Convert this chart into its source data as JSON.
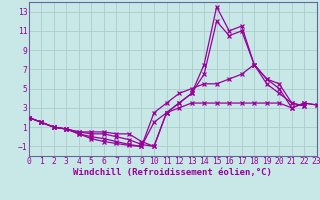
{
  "xlabel": "Windchill (Refroidissement éolien,°C)",
  "background_color": "#c8e8e8",
  "line_color": "#990099",
  "grid_color": "#aacccc",
  "spine_color": "#666699",
  "xlim": [
    0,
    23
  ],
  "ylim": [
    -2.0,
    14.0
  ],
  "yticks": [
    -1,
    1,
    3,
    5,
    7,
    9,
    11,
    13
  ],
  "xticks": [
    0,
    1,
    2,
    3,
    4,
    5,
    6,
    7,
    8,
    9,
    10,
    11,
    12,
    13,
    14,
    15,
    16,
    17,
    18,
    19,
    20,
    21,
    22,
    23
  ],
  "series": [
    {
      "x": [
        0,
        1,
        2,
        3,
        4,
        5,
        6,
        7,
        8,
        9,
        10,
        11,
        12,
        13,
        14,
        15,
        16,
        17,
        18,
        19,
        20,
        21,
        22,
        23
      ],
      "y": [
        2.0,
        1.5,
        1.0,
        0.8,
        0.5,
        0.5,
        0.5,
        0.3,
        0.3,
        -0.5,
        -1.0,
        2.5,
        3.5,
        4.5,
        7.5,
        13.5,
        11.0,
        11.5,
        7.5,
        5.5,
        4.5,
        3.5,
        3.2,
        null
      ]
    },
    {
      "x": [
        0,
        1,
        2,
        3,
        4,
        5,
        6,
        7,
        8,
        9,
        10,
        11,
        12,
        13,
        14,
        15,
        16,
        17,
        18,
        19,
        20,
        21,
        22,
        23
      ],
      "y": [
        2.0,
        1.5,
        1.0,
        0.8,
        0.5,
        0.3,
        0.3,
        0.0,
        -0.3,
        -0.8,
        -1.0,
        2.5,
        3.5,
        4.5,
        6.5,
        12.0,
        10.5,
        11.0,
        7.5,
        6.0,
        5.5,
        3.5,
        3.2,
        null
      ]
    },
    {
      "x": [
        0,
        1,
        2,
        3,
        4,
        5,
        6,
        7,
        8,
        9,
        10,
        11,
        12,
        13,
        14,
        15,
        16,
        17,
        18,
        19,
        20,
        21,
        22,
        23
      ],
      "y": [
        2.0,
        1.5,
        1.0,
        0.8,
        0.3,
        0.0,
        -0.2,
        -0.5,
        -0.8,
        -1.0,
        2.5,
        3.5,
        4.5,
        5.0,
        5.5,
        5.5,
        6.0,
        6.5,
        7.5,
        6.0,
        5.0,
        3.0,
        3.5,
        3.3
      ]
    },
    {
      "x": [
        0,
        1,
        2,
        3,
        4,
        5,
        6,
        7,
        8,
        9,
        10,
        11,
        12,
        13,
        14,
        15,
        16,
        17,
        18,
        19,
        20,
        21,
        22,
        23
      ],
      "y": [
        2.0,
        1.5,
        1.0,
        0.8,
        0.3,
        -0.2,
        -0.5,
        -0.7,
        -0.9,
        -1.0,
        1.5,
        2.5,
        3.0,
        3.5,
        3.5,
        3.5,
        3.5,
        3.5,
        3.5,
        3.5,
        3.5,
        3.0,
        3.5,
        3.3
      ]
    }
  ]
}
